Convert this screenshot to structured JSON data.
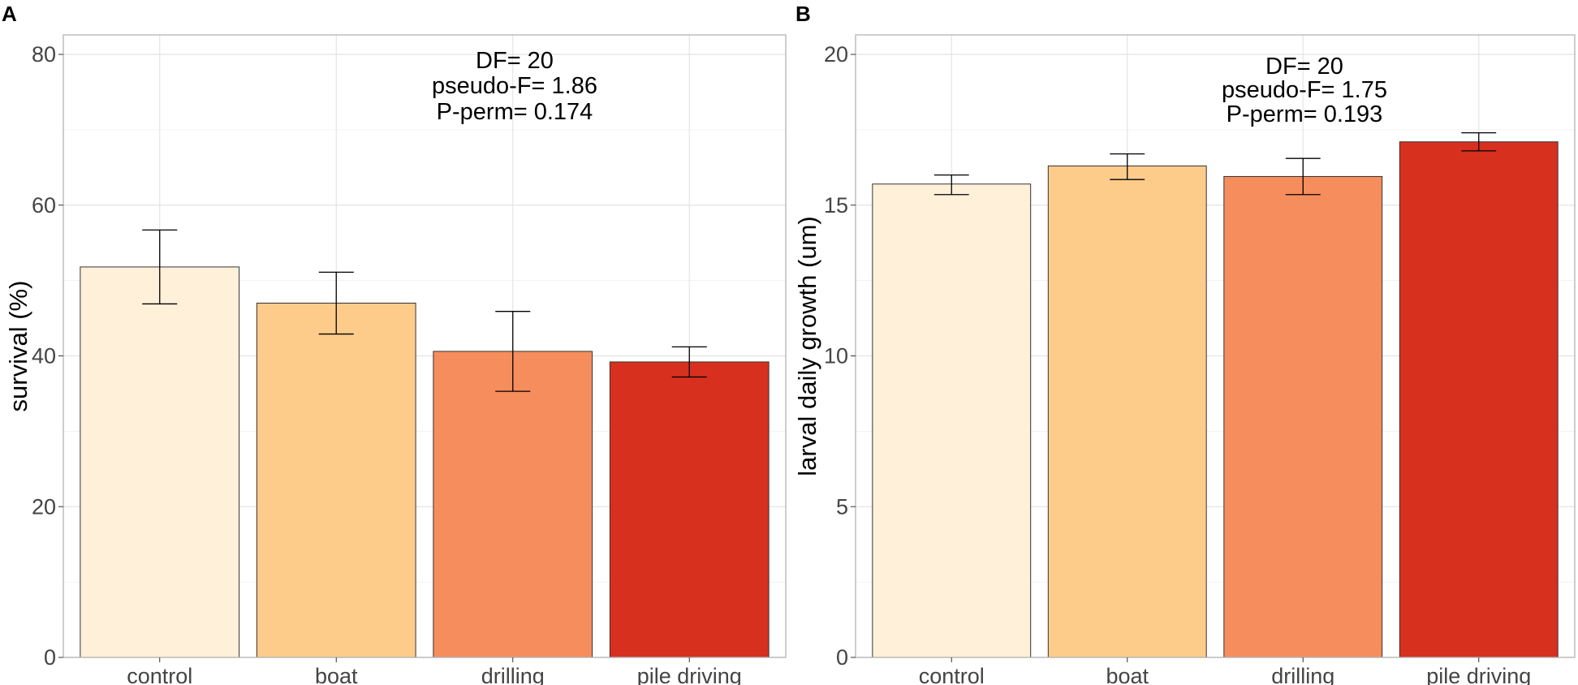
{
  "chart_data": [
    {
      "panel": "A",
      "type": "bar",
      "categories": [
        "control",
        "boat",
        "drilling",
        "pile driving"
      ],
      "values": [
        51.8,
        47.0,
        40.6,
        39.2
      ],
      "error_low": [
        46.9,
        42.9,
        35.3,
        37.2
      ],
      "error_high": [
        56.7,
        51.1,
        45.9,
        41.2
      ],
      "colors": [
        "#fef0d9",
        "#fdcc8a",
        "#f58d5c",
        "#d7301f"
      ],
      "xlabel": "",
      "ylabel": "survival (%)",
      "ylim": [
        0,
        80
      ],
      "yticks": [
        0,
        20,
        40,
        60,
        80
      ],
      "grid": true,
      "annotation": [
        "DF= 20",
        "pseudo-F= 1.86",
        "P-perm= 0.174"
      ]
    },
    {
      "panel": "B",
      "type": "bar",
      "categories": [
        "control",
        "boat",
        "drilling",
        "pile driving"
      ],
      "values": [
        15.7,
        16.3,
        15.95,
        17.1
      ],
      "error_low": [
        15.35,
        15.85,
        15.35,
        16.8
      ],
      "error_high": [
        16.0,
        16.7,
        16.55,
        17.4
      ],
      "colors": [
        "#fef0d9",
        "#fdcc8a",
        "#f58d5c",
        "#d7301f"
      ],
      "xlabel": "",
      "ylabel": "larval daily growth (um)",
      "ylim": [
        0,
        20
      ],
      "yticks": [
        0,
        5,
        10,
        15,
        20
      ],
      "grid": true,
      "annotation": [
        "DF= 20",
        "pseudo-F= 1.75",
        "P-perm= 0.193"
      ]
    }
  ]
}
